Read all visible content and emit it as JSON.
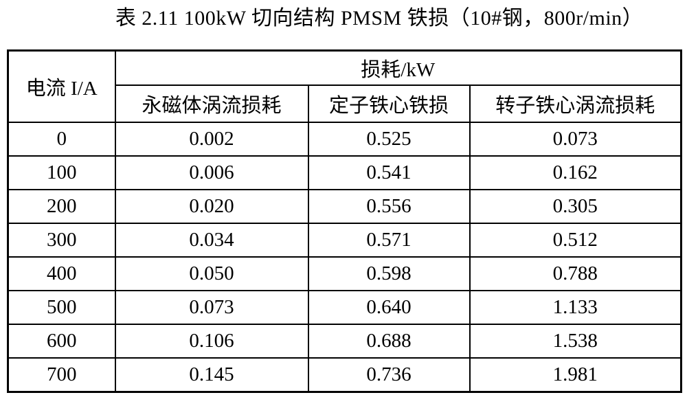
{
  "page": {
    "caption": "表 2.11 100kW 切向结构 PMSM 铁损（10#钢，800r/min）"
  },
  "table": {
    "current_header": "电流 I/A",
    "loss_group_header": "损耗/kW",
    "sub_headers": {
      "pm_eddy": "永磁体涡流损耗",
      "stator_iron": "定子铁心铁损",
      "rotor_eddy": "转子铁心涡流损耗"
    },
    "rows": [
      {
        "current": "0",
        "pm_eddy": "0.002",
        "stator_iron": "0.525",
        "rotor_eddy": "0.073"
      },
      {
        "current": "100",
        "pm_eddy": "0.006",
        "stator_iron": "0.541",
        "rotor_eddy": "0.162"
      },
      {
        "current": "200",
        "pm_eddy": "0.020",
        "stator_iron": "0.556",
        "rotor_eddy": "0.305"
      },
      {
        "current": "300",
        "pm_eddy": "0.034",
        "stator_iron": "0.571",
        "rotor_eddy": "0.512"
      },
      {
        "current": "400",
        "pm_eddy": "0.050",
        "stator_iron": "0.598",
        "rotor_eddy": "0.788"
      },
      {
        "current": "500",
        "pm_eddy": "0.073",
        "stator_iron": "0.640",
        "rotor_eddy": "1.133"
      },
      {
        "current": "600",
        "pm_eddy": "0.106",
        "stator_iron": "0.688",
        "rotor_eddy": "1.538"
      },
      {
        "current": "700",
        "pm_eddy": "0.145",
        "stator_iron": "0.736",
        "rotor_eddy": "1.981"
      }
    ]
  }
}
